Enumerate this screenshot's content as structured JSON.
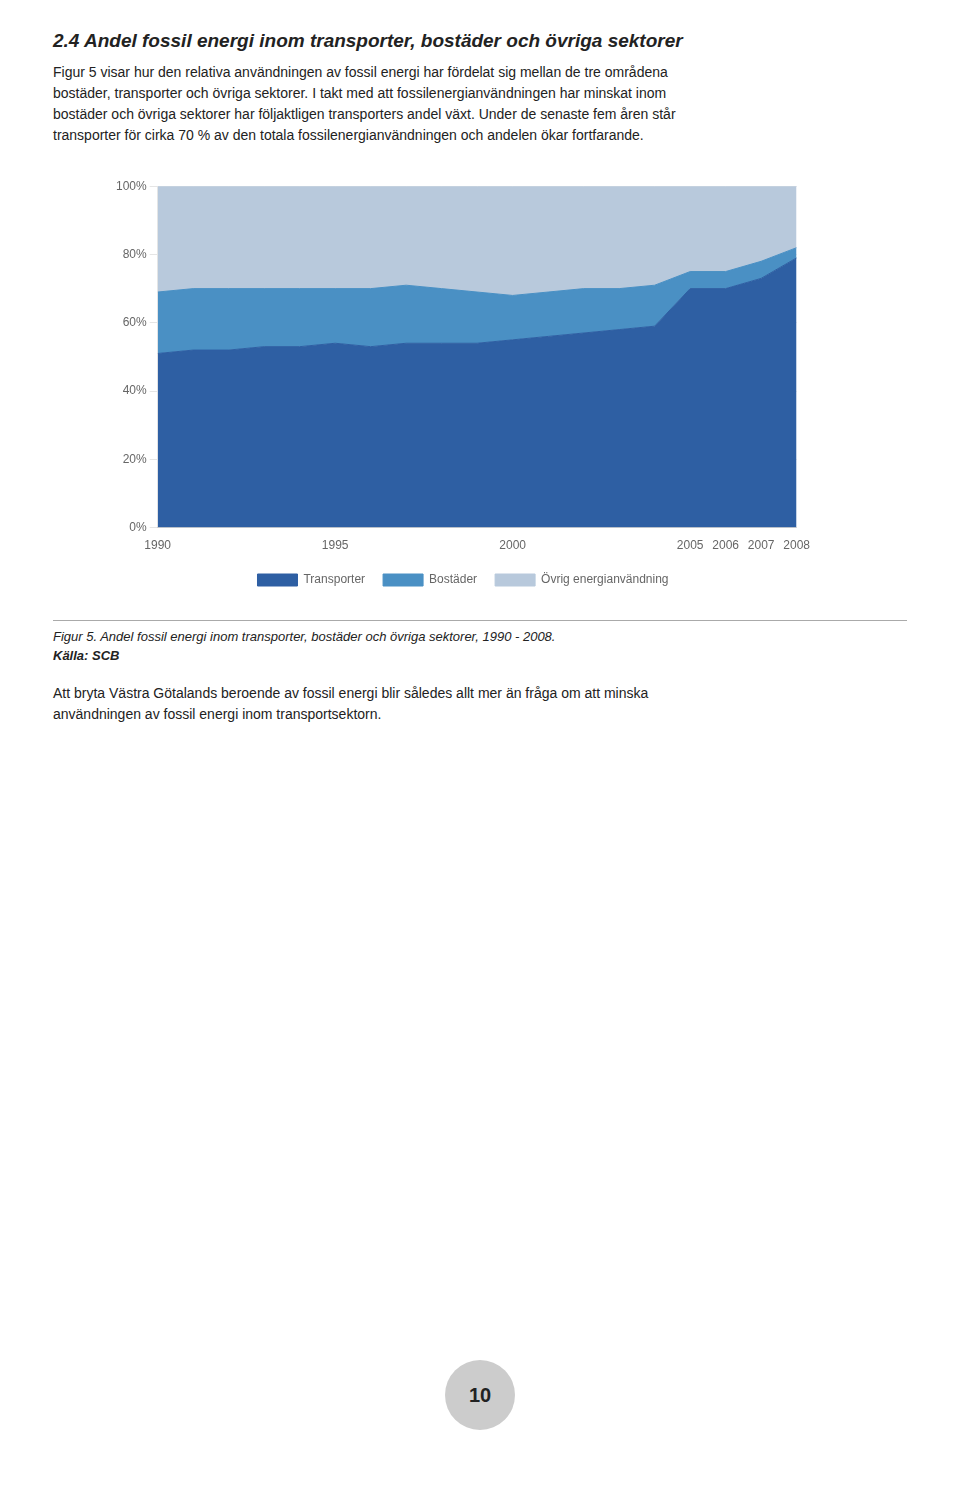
{
  "chart_data": {
    "type": "area",
    "stacked": true,
    "title": "2.4 Andel fossil energi inom transporter, bostäder och övriga sektorer",
    "annotations": [
      "Figur 5 visar hur den relativa användningen av fossil energi har fördelat sig mellan de tre områdena",
      "bostäder, transporter och övriga sektorer. I takt med att fossilenergianvändningen har minskat inom",
      "bostäder och övriga sektorer har följaktligen transporters andel växt. Under de senaste fem åren står",
      "transporter för cirka 70 % av den totala fossilenergianvändningen och andelen ökar fortfarande.",
      "Figur 5. Andel fossil energi inom transporter, bostäder och övriga sektorer, 1990 - 2008.",
      "Källa: SCB",
      "Att bryta Västra Götalands beroende av fossil energi blir således allt mer än fråga om att minska",
      "användningen av fossil energi inom transportsektorn.",
      "10"
    ],
    "x": [
      1990,
      1991,
      1992,
      1993,
      1994,
      1995,
      1996,
      1997,
      1998,
      1999,
      2000,
      2001,
      2002,
      2003,
      2004,
      2005,
      2006,
      2007,
      2008
    ],
    "series": [
      {
        "name": "Transporter",
        "color": "#2E5FA3",
        "values": [
          51,
          52,
          52,
          53,
          53,
          54,
          53,
          54,
          54,
          54,
          55,
          56,
          57,
          58,
          59,
          70,
          70,
          73,
          79
        ]
      },
      {
        "name": "Bostäder",
        "color": "#4A90C4",
        "values": [
          18,
          18,
          18,
          17,
          17,
          16,
          17,
          17,
          16,
          15,
          13,
          13,
          13,
          12,
          12,
          5,
          5,
          5,
          3
        ]
      },
      {
        "name": "Övrig energianvändning",
        "color": "#B8C9DC",
        "values": [
          31,
          30,
          30,
          30,
          30,
          30,
          30,
          29,
          30,
          31,
          32,
          31,
          30,
          30,
          29,
          25,
          25,
          22,
          18
        ]
      }
    ],
    "xlim": [
      1990,
      2008
    ],
    "xticks": [
      1990,
      1995,
      2000,
      2005,
      2006,
      2007,
      2008
    ],
    "ylim": [
      0,
      100
    ],
    "yticks": [
      {
        "value": 0,
        "label": "0%"
      },
      {
        "value": 20,
        "label": "20%"
      },
      {
        "value": 40,
        "label": "40%"
      },
      {
        "value": 60,
        "label": "60%"
      },
      {
        "value": 80,
        "label": "80%"
      },
      {
        "value": 100,
        "label": "100%"
      }
    ],
    "grid": true,
    "legend": "bottom"
  }
}
